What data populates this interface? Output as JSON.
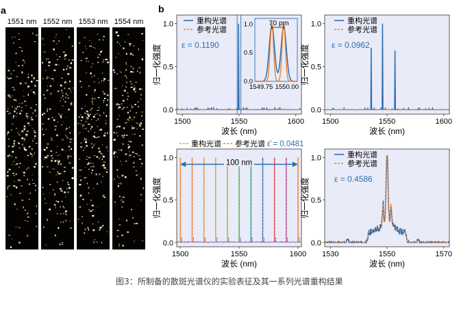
{
  "figure": {
    "caption": "图3：所制备的散斑光谱仪的实验表征及其一系列光谱重构结果",
    "panel_a": {
      "letter": "a",
      "strips": [
        {
          "label": "1551 nm",
          "seed": 11
        },
        {
          "label": "1552 nm",
          "seed": 23
        },
        {
          "label": "1553 nm",
          "seed": 37
        },
        {
          "label": "1554 nm",
          "seed": 51
        }
      ]
    },
    "panel_b": {
      "letter": "b",
      "legend": {
        "reconstructed": "重构光谱",
        "reference": "参考光谱"
      },
      "xlabel": "波长 (nm)",
      "ylabel": "归一化强度",
      "colors": {
        "reconstructed": "#2a6db0",
        "reference": "#f0822a",
        "panel_bg": "#e9ebf8",
        "error_text": "#2a6db0"
      }
    }
  },
  "chart_data": [
    {
      "type": "line",
      "panel": "b-top-left",
      "xlabel": "波长 (nm)",
      "ylabel": "归一化强度",
      "xlim": [
        1495,
        1605
      ],
      "ylim": [
        -0.05,
        1.1
      ],
      "xticks": [
        "1500",
        "1550",
        "1600"
      ],
      "yticks": [
        "0.0",
        "0.5",
        "1.0"
      ],
      "annotation": "ε = 0.1190",
      "series": [
        {
          "name": "重构光谱",
          "peaks": [
            [
              1549.85,
              1.0
            ],
            [
              1549.9,
              1.0
            ]
          ]
        },
        {
          "name": "参考光谱",
          "peaks": [
            [
              1549.85,
              1.0
            ],
            [
              1549.9,
              1.0
            ]
          ]
        }
      ],
      "inset": {
        "xlim": [
          1549.75,
          1550.0
        ],
        "ylim": [
          0,
          1.1
        ],
        "xticks": [
          "1549.75",
          "1550.00"
        ],
        "yticks": [
          "0.0",
          "0.5",
          "1.0"
        ],
        "annotation": "70 pm",
        "peaks": [
          1549.85,
          1549.92
        ]
      }
    },
    {
      "type": "line",
      "panel": "b-top-right",
      "xlabel": "波长 (nm)",
      "ylabel": "归一化强度",
      "xlim": [
        1495,
        1605
      ],
      "ylim": [
        -0.05,
        1.1
      ],
      "xticks": [
        "1500",
        "1550",
        "1600"
      ],
      "yticks": [
        "0.0",
        "0.5",
        "1.0"
      ],
      "annotation": "ε = 0.0962",
      "series": [
        {
          "name": "重构光谱",
          "peaks": [
            [
              1536,
              0.72
            ],
            [
              1546,
              1.0
            ],
            [
              1557,
              0.69
            ]
          ]
        },
        {
          "name": "参考光谱",
          "peaks": [
            [
              1536,
              0.72
            ],
            [
              1546,
              1.0
            ],
            [
              1557,
              0.69
            ]
          ]
        }
      ]
    },
    {
      "type": "line",
      "panel": "b-bottom-left",
      "xlabel": "波长 (nm)",
      "ylabel": "归一化强度",
      "xlim": [
        1497,
        1603
      ],
      "ylim": [
        -0.05,
        1.1
      ],
      "xticks": [
        "1500",
        "1550",
        "1600"
      ],
      "yticks": [
        "0.0",
        "0.5",
        "1.0"
      ],
      "annotation": "ε̄ = 0.0481",
      "span_label": "100 nm",
      "lines": [
        {
          "x": 1500,
          "color": "#f0822a"
        },
        {
          "x": 1510,
          "color": "#f0822a"
        },
        {
          "x": 1520,
          "color": "#d8a020"
        },
        {
          "x": 1530,
          "color": "#c8b020"
        },
        {
          "x": 1540,
          "color": "#9cbf30"
        },
        {
          "x": 1550,
          "color": "#4caf50"
        },
        {
          "x": 1560,
          "color": "#2a9d8f"
        },
        {
          "x": 1570,
          "color": "#3a7fc0"
        },
        {
          "x": 1580,
          "color": "#e05050"
        },
        {
          "x": 1590,
          "color": "#c05090"
        },
        {
          "x": 1600,
          "color": "#f0822a"
        }
      ]
    },
    {
      "type": "line",
      "panel": "b-bottom-right",
      "xlabel": "波长 (nm)",
      "ylabel": "归一化强度",
      "xlim": [
        1528,
        1572
      ],
      "ylim": [
        -0.05,
        1.1
      ],
      "xticks": [
        "1530",
        "1550",
        "1570"
      ],
      "yticks": [
        "0.0",
        "0.5",
        "1.0"
      ],
      "annotation": "ε = 0.4586",
      "series": [
        {
          "name": "重构光谱"
        },
        {
          "name": "参考光谱"
        }
      ]
    }
  ]
}
